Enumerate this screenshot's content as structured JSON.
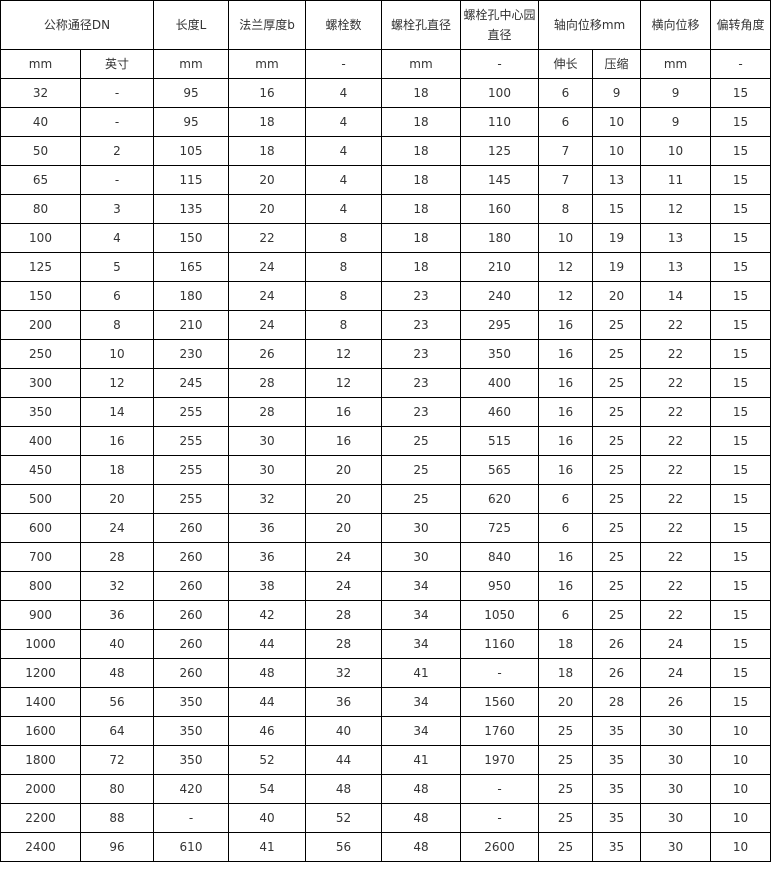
{
  "header": {
    "dn": "公称通径DN",
    "length": "长度L",
    "flange_thickness": "法兰厚度b",
    "bolt_count": "螺栓数",
    "bolt_hole_dia": "螺栓孔直径",
    "bolt_circle_dia": "螺栓孔中心园直径",
    "axial": "轴向位移mm",
    "lateral": "横向位移",
    "angular": "偏转角度"
  },
  "units": [
    "mm",
    "英寸",
    "mm",
    "mm",
    "-",
    "mm",
    "-",
    "伸长",
    "压缩",
    "mm",
    "-"
  ],
  "rows": [
    [
      "32",
      "-",
      "95",
      "16",
      "4",
      "18",
      "100",
      "6",
      "9",
      "9",
      "15"
    ],
    [
      "40",
      "-",
      "95",
      "18",
      "4",
      "18",
      "110",
      "6",
      "10",
      "9",
      "15"
    ],
    [
      "50",
      "2",
      "105",
      "18",
      "4",
      "18",
      "125",
      "7",
      "10",
      "10",
      "15"
    ],
    [
      "65",
      "-",
      "115",
      "20",
      "4",
      "18",
      "145",
      "7",
      "13",
      "11",
      "15"
    ],
    [
      "80",
      "3",
      "135",
      "20",
      "4",
      "18",
      "160",
      "8",
      "15",
      "12",
      "15"
    ],
    [
      "100",
      "4",
      "150",
      "22",
      "8",
      "18",
      "180",
      "10",
      "19",
      "13",
      "15"
    ],
    [
      "125",
      "5",
      "165",
      "24",
      "8",
      "18",
      "210",
      "12",
      "19",
      "13",
      "15"
    ],
    [
      "150",
      "6",
      "180",
      "24",
      "8",
      "23",
      "240",
      "12",
      "20",
      "14",
      "15"
    ],
    [
      "200",
      "8",
      "210",
      "24",
      "8",
      "23",
      "295",
      "16",
      "25",
      "22",
      "15"
    ],
    [
      "250",
      "10",
      "230",
      "26",
      "12",
      "23",
      "350",
      "16",
      "25",
      "22",
      "15"
    ],
    [
      "300",
      "12",
      "245",
      "28",
      "12",
      "23",
      "400",
      "16",
      "25",
      "22",
      "15"
    ],
    [
      "350",
      "14",
      "255",
      "28",
      "16",
      "23",
      "460",
      "16",
      "25",
      "22",
      "15"
    ],
    [
      "400",
      "16",
      "255",
      "30",
      "16",
      "25",
      "515",
      "16",
      "25",
      "22",
      "15"
    ],
    [
      "450",
      "18",
      "255",
      "30",
      "20",
      "25",
      "565",
      "16",
      "25",
      "22",
      "15"
    ],
    [
      "500",
      "20",
      "255",
      "32",
      "20",
      "25",
      "620",
      "6",
      "25",
      "22",
      "15"
    ],
    [
      "600",
      "24",
      "260",
      "36",
      "20",
      "30",
      "725",
      "6",
      "25",
      "22",
      "15"
    ],
    [
      "700",
      "28",
      "260",
      "36",
      "24",
      "30",
      "840",
      "16",
      "25",
      "22",
      "15"
    ],
    [
      "800",
      "32",
      "260",
      "38",
      "24",
      "34",
      "950",
      "16",
      "25",
      "22",
      "15"
    ],
    [
      "900",
      "36",
      "260",
      "42",
      "28",
      "34",
      "1050",
      "6",
      "25",
      "22",
      "15"
    ],
    [
      "1000",
      "40",
      "260",
      "44",
      "28",
      "34",
      "1160",
      "18",
      "26",
      "24",
      "15"
    ],
    [
      "1200",
      "48",
      "260",
      "48",
      "32",
      "41",
      "-",
      "18",
      "26",
      "24",
      "15"
    ],
    [
      "1400",
      "56",
      "350",
      "44",
      "36",
      "34",
      "1560",
      "20",
      "28",
      "26",
      "15"
    ],
    [
      "1600",
      "64",
      "350",
      "46",
      "40",
      "34",
      "1760",
      "25",
      "35",
      "30",
      "10"
    ],
    [
      "1800",
      "72",
      "350",
      "52",
      "44",
      "41",
      "1970",
      "25",
      "35",
      "30",
      "10"
    ],
    [
      "2000",
      "80",
      "420",
      "54",
      "48",
      "48",
      "-",
      "25",
      "35",
      "30",
      "10"
    ],
    [
      "2200",
      "88",
      "-",
      "40",
      "52",
      "48",
      "-",
      "25",
      "35",
      "30",
      "10"
    ],
    [
      "2400",
      "96",
      "610",
      "41",
      "56",
      "48",
      "2600",
      "25",
      "35",
      "30",
      "10"
    ]
  ]
}
